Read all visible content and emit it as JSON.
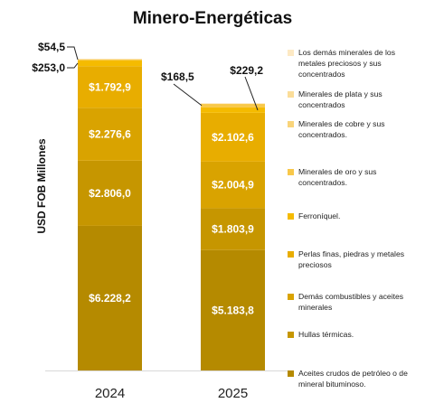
{
  "chart_data": {
    "type": "bar",
    "stacked": true,
    "title": "Minero-Energéticas",
    "ylabel": "USD FOB Millones",
    "xlabel": "",
    "categories": [
      "2024",
      "2025"
    ],
    "series": [
      {
        "name": "Aceites crudos de petróleo o de mineral bituminoso.",
        "color": "#b58a00",
        "values": [
          6228.2,
          5183.8
        ],
        "labels": [
          "$6.228,2",
          "$5.183,8"
        ]
      },
      {
        "name": "Hullas térmicas.",
        "color": "#c69600",
        "values": [
          2806.0,
          1803.9
        ],
        "labels": [
          "$2.806,0",
          "$1.803,9"
        ]
      },
      {
        "name": "Demás combustibles y aceites minerales",
        "color": "#d9a300",
        "values": [
          2276.6,
          2004.9
        ],
        "labels": [
          "$2.276,6",
          "$2.004,9"
        ]
      },
      {
        "name": "Perlas finas, piedras y metales preciosos",
        "color": "#e8ad00",
        "values": [
          1792.9,
          2102.6
        ],
        "labels": [
          "$1.792,9",
          "$2.102,6"
        ]
      },
      {
        "name": "Ferroníquel.",
        "color": "#f5bb00",
        "values": [
          253.0,
          229.2
        ],
        "labels": [
          "$253,0",
          "$229,2"
        ]
      },
      {
        "name": "Minerales de oro y sus concentrados.",
        "color": "#f8c84a",
        "values": [
          54.5,
          168.5
        ],
        "labels": [
          "$54,5",
          "$168,5"
        ]
      },
      {
        "name": "Minerales de cobre y sus concentrados.",
        "color": "#f9d47a",
        "values": [
          5.0,
          5.0
        ],
        "labels": [
          "",
          ""
        ]
      },
      {
        "name": "Minerales de plata y sus concentrados",
        "color": "#fbdd99",
        "values": [
          2.0,
          2.0
        ],
        "labels": [
          "",
          ""
        ]
      },
      {
        "name": "Los demás minerales de los metales preciosos y sus concentrados",
        "color": "#fde9c4",
        "values": [
          5.0,
          5.0
        ],
        "labels": [
          "",
          ""
        ]
      }
    ],
    "legend_placement": "right",
    "grid": false
  }
}
